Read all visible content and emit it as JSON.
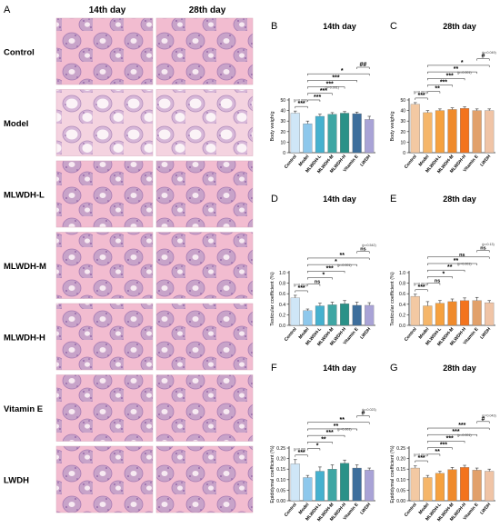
{
  "figure": {
    "panel_A_letter": "A",
    "day14_heading": "14th day",
    "day28_heading": "28th day",
    "groups": [
      "Control",
      "Model",
      "MLWDH-L",
      "MLWDH-M",
      "MLWDH-H",
      "Vitamin E",
      "LWDH"
    ],
    "tissue_colors": {
      "bg": "#f2bcd0",
      "tubule": "#c8a3c9",
      "lumen": "#f7eaf2",
      "cell": "#8a5aa2"
    }
  },
  "chart_data": [
    {
      "panel": "B",
      "type": "bar",
      "title": "14th day",
      "ylabel": "Body weigh/g",
      "ylim": [
        0,
        50
      ],
      "yticks": [
        0,
        10,
        20,
        30,
        40,
        50
      ],
      "categories": [
        "Control",
        "Model",
        "MLWDH-L",
        "MLWDH-M",
        "MLWDH-H",
        "Vitamin E",
        "LWDH"
      ],
      "values": [
        37.5,
        27.5,
        34.5,
        36.5,
        37.5,
        37,
        31.5
      ],
      "errors": [
        2,
        2.5,
        2,
        1.5,
        1.5,
        1.5,
        3
      ],
      "colors": [
        "#cfe6f7",
        "#8ec8ec",
        "#45b1cf",
        "#3fa6a4",
        "#2a9188",
        "#3d6e9c",
        "#a9a3d6"
      ],
      "sig": [
        {
          "i": 0,
          "j": 1,
          "label": "***",
          "level": 0,
          "p": "(p=0.000)"
        },
        {
          "i": 1,
          "j": 2,
          "label": "***",
          "level": 1
        },
        {
          "i": 1,
          "j": 3,
          "label": "***",
          "level": 2,
          "p": "(p=0.001)"
        },
        {
          "i": 1,
          "j": 4,
          "label": "***",
          "level": 3
        },
        {
          "i": 1,
          "j": 5,
          "label": "***",
          "level": 4
        },
        {
          "i": 1,
          "j": 6,
          "label": "*",
          "level": 5
        },
        {
          "i": 5,
          "j": 6,
          "label": "##",
          "level": 6
        }
      ]
    },
    {
      "panel": "C",
      "type": "bar",
      "title": "28th day",
      "ylabel": "Body weigh/g",
      "ylim": [
        0,
        50
      ],
      "yticks": [
        0,
        10,
        20,
        30,
        40,
        50
      ],
      "categories": [
        "Control",
        "Model",
        "MLWDH-L",
        "MLWDH-M",
        "MLWDH-H",
        "Vitamin E",
        "LWDH"
      ],
      "values": [
        46,
        38,
        40,
        41,
        42,
        40,
        40
      ],
      "errors": [
        1.5,
        2,
        1.5,
        1.5,
        1.5,
        1.5,
        1.5
      ],
      "colors": [
        "#f3c9a3",
        "#f5b66a",
        "#f6a13f",
        "#ef8a2c",
        "#f3731d",
        "#e1a06a",
        "#f0c4a6"
      ],
      "sig": [
        {
          "i": 0,
          "j": 1,
          "label": "***",
          "level": 0,
          "p": "(p=0.001)"
        },
        {
          "i": 1,
          "j": 2,
          "label": "**",
          "level": 1
        },
        {
          "i": 1,
          "j": 3,
          "label": "***",
          "level": 2
        },
        {
          "i": 1,
          "j": 4,
          "label": "***",
          "level": 3,
          "p": "(p=0.001)"
        },
        {
          "i": 1,
          "j": 5,
          "label": "**",
          "level": 4
        },
        {
          "i": 1,
          "j": 6,
          "label": "*",
          "level": 5
        },
        {
          "i": 5,
          "j": 6,
          "label": "#",
          "level": 6,
          "p": "(p=0.049)"
        }
      ]
    },
    {
      "panel": "D",
      "type": "bar",
      "title": "14th day",
      "ylabel": "Testicular coefficient (%)",
      "ylim": [
        0,
        1.0
      ],
      "yticks": [
        0.0,
        0.2,
        0.4,
        0.6,
        0.8,
        1.0
      ],
      "categories": [
        "Control",
        "Model",
        "MLWDH-L",
        "MLWDH-M",
        "MLWDH-H",
        "Vitamin E",
        "LWDH"
      ],
      "values": [
        0.52,
        0.28,
        0.37,
        0.39,
        0.41,
        0.38,
        0.38
      ],
      "errors": [
        0.05,
        0.03,
        0.05,
        0.05,
        0.06,
        0.06,
        0.05
      ],
      "colors": [
        "#cfe6f7",
        "#8ec8ec",
        "#45b1cf",
        "#3fa6a4",
        "#2a9188",
        "#3d6e9c",
        "#a9a3d6"
      ],
      "sig": [
        {
          "i": 0,
          "j": 1,
          "label": "***",
          "level": 0,
          "p": "(p=0.001)"
        },
        {
          "i": 1,
          "j": 2,
          "label": "ns",
          "level": 1
        },
        {
          "i": 1,
          "j": 3,
          "label": "*",
          "level": 2
        },
        {
          "i": 1,
          "j": 4,
          "label": "***",
          "level": 3,
          "p": "(p=0.001)"
        },
        {
          "i": 1,
          "j": 5,
          "label": "*",
          "level": 4
        },
        {
          "i": 1,
          "j": 6,
          "label": "**",
          "level": 5
        },
        {
          "i": 5,
          "j": 6,
          "label": "ns",
          "level": 6,
          "p": "(p=0.542)"
        }
      ]
    },
    {
      "panel": "E",
      "type": "bar",
      "title": "28th day",
      "ylabel": "Testicular coefficient (%)",
      "ylim": [
        0,
        1.0
      ],
      "yticks": [
        0.0,
        0.2,
        0.4,
        0.6,
        0.8,
        1.0
      ],
      "categories": [
        "Control",
        "Model",
        "MLWDH-L",
        "MLWDH-M",
        "MLWDH-H",
        "Vitamin E",
        "LWDH"
      ],
      "values": [
        0.55,
        0.37,
        0.42,
        0.45,
        0.47,
        0.47,
        0.43
      ],
      "errors": [
        0.04,
        0.08,
        0.05,
        0.05,
        0.05,
        0.06,
        0.04
      ],
      "colors": [
        "#f3c9a3",
        "#f5b66a",
        "#f6a13f",
        "#ef8a2c",
        "#f3731d",
        "#e1a06a",
        "#f0c4a6"
      ],
      "sig": [
        {
          "i": 0,
          "j": 1,
          "label": "***",
          "level": 0,
          "p": "(p=0.001)"
        },
        {
          "i": 1,
          "j": 2,
          "label": "ns",
          "level": 1
        },
        {
          "i": 1,
          "j": 3,
          "label": "*",
          "level": 2
        },
        {
          "i": 1,
          "j": 4,
          "label": "**",
          "level": 3,
          "p": "(p=0.001)"
        },
        {
          "i": 1,
          "j": 5,
          "label": "**",
          "level": 4
        },
        {
          "i": 1,
          "j": 6,
          "label": "ns",
          "level": 5
        },
        {
          "i": 5,
          "j": 6,
          "label": "ns",
          "level": 6,
          "p": "(p=0.13)"
        }
      ]
    },
    {
      "panel": "F",
      "type": "bar",
      "title": "14th day",
      "ylabel": "Epididymal coefficient (%)",
      "ylim": [
        0,
        0.25
      ],
      "yticks": [
        0.0,
        0.05,
        0.1,
        0.15,
        0.2,
        0.25
      ],
      "categories": [
        "Control",
        "Model",
        "MLWDH-L",
        "MLWDH-M",
        "MLWDH-H",
        "Vitamin E",
        "LWDH"
      ],
      "values": [
        0.175,
        0.11,
        0.14,
        0.15,
        0.178,
        0.155,
        0.145
      ],
      "errors": [
        0.02,
        0.01,
        0.02,
        0.02,
        0.015,
        0.015,
        0.01
      ],
      "colors": [
        "#cfe6f7",
        "#8ec8ec",
        "#45b1cf",
        "#3fa6a4",
        "#2a9188",
        "#3d6e9c",
        "#a9a3d6"
      ],
      "sig": [
        {
          "i": 0,
          "j": 1,
          "label": "***",
          "level": 0,
          "p": "(p=0.00)"
        },
        {
          "i": 1,
          "j": 2,
          "label": "*",
          "level": 1
        },
        {
          "i": 1,
          "j": 3,
          "label": "**",
          "level": 2
        },
        {
          "i": 1,
          "j": 4,
          "label": "***",
          "level": 3,
          "p": "(p=0.001)"
        },
        {
          "i": 1,
          "j": 5,
          "label": "**",
          "level": 4
        },
        {
          "i": 1,
          "j": 6,
          "label": "**",
          "level": 5
        },
        {
          "i": 5,
          "j": 6,
          "label": "#",
          "level": 6,
          "p": "(p=0.023)"
        }
      ]
    },
    {
      "panel": "G",
      "type": "bar",
      "title": "28th day",
      "ylabel": "Epididymal coefficient (%)",
      "ylim": [
        0,
        0.25
      ],
      "yticks": [
        0.0,
        0.05,
        0.1,
        0.15,
        0.2,
        0.25
      ],
      "categories": [
        "Control",
        "Model",
        "MLWDH-L",
        "MLWDH-M",
        "MLWDH-H",
        "Vitamin E",
        "LWDH"
      ],
      "values": [
        0.155,
        0.11,
        0.13,
        0.148,
        0.158,
        0.145,
        0.14
      ],
      "errors": [
        0.01,
        0.01,
        0.01,
        0.01,
        0.01,
        0.01,
        0.01
      ],
      "colors": [
        "#f3c9a3",
        "#f5b66a",
        "#f6a13f",
        "#ef8a2c",
        "#f3731d",
        "#e1a06a",
        "#f0c4a6"
      ],
      "sig": [
        {
          "i": 0,
          "j": 1,
          "label": "***",
          "level": 0,
          "p": "(p=0.001)"
        },
        {
          "i": 1,
          "j": 2,
          "label": "**",
          "level": 1
        },
        {
          "i": 1,
          "j": 3,
          "label": "***",
          "level": 2
        },
        {
          "i": 1,
          "j": 4,
          "label": "***",
          "level": 3,
          "p": "(p=0.001)"
        },
        {
          "i": 1,
          "j": 5,
          "label": "***",
          "level": 4
        },
        {
          "i": 1,
          "j": 6,
          "label": "***",
          "level": 5
        },
        {
          "i": 5,
          "j": 6,
          "label": "#",
          "level": 6,
          "p": "(p=0.043)"
        }
      ]
    }
  ]
}
